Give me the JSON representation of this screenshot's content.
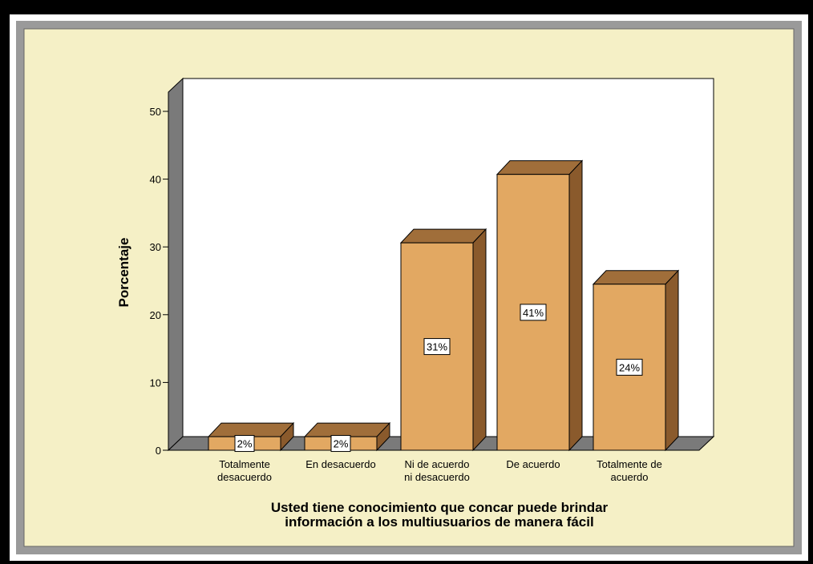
{
  "chart_data": {
    "type": "bar3d",
    "categories": [
      "Totalmente desacuerdo",
      "En desacuerdo",
      "Ni de acuerdo ni desacuerdo",
      "De acuerdo",
      "Totalmente de acuerdo"
    ],
    "values": [
      2,
      2,
      30.6,
      40.7,
      24.5
    ],
    "value_labels": [
      "2%",
      "2%",
      "31%",
      "41%",
      "24%"
    ],
    "color": "#e2a862",
    "ylabel": "Porcentaje",
    "xlabel": [
      "Usted tiene conocimiento que  concar puede brindar",
      "información a los multiusuarios de manera fácil"
    ],
    "ylim": [
      0,
      50
    ],
    "yticks": [
      0,
      10,
      20,
      30,
      40,
      50
    ]
  }
}
